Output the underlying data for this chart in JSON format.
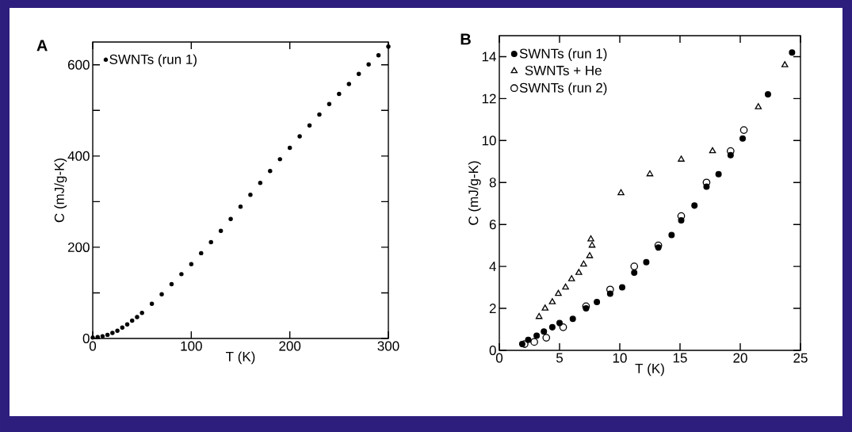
{
  "chart_data": [
    {
      "type": "scatter",
      "title": "A",
      "xlabel": "T (K)",
      "ylabel": "C (mJ/g-K)",
      "xlim": [
        0,
        300
      ],
      "ylim": [
        0,
        650
      ],
      "xticks": [
        0,
        100,
        200,
        300
      ],
      "yticks": [
        0,
        {
          "value": 100,
          "label": null
        },
        200,
        {
          "value": 300,
          "label": null
        },
        400,
        {
          "value": 500,
          "label": null
        },
        600
      ],
      "legend": "top left",
      "series": [
        {
          "name": "SWNTs (run 1)",
          "color": "#000000",
          "marker": "circle",
          "x": [
            0,
            5,
            10,
            15,
            20,
            25,
            30,
            35,
            40,
            45,
            50,
            60,
            70,
            80,
            90,
            100,
            110,
            120,
            130,
            140,
            150,
            160,
            170,
            180,
            190,
            200,
            210,
            220,
            230,
            240,
            250,
            260,
            270,
            280,
            290,
            300
          ],
          "values": [
            2,
            3,
            5,
            8,
            12,
            17,
            24,
            31,
            39,
            47,
            56,
            76,
            97,
            119,
            141,
            163,
            187,
            211,
            236,
            262,
            289,
            315,
            341,
            367,
            393,
            418,
            443,
            467,
            491,
            514,
            536,
            558,
            580,
            601,
            621,
            640
          ]
        }
      ]
    },
    {
      "type": "scatter",
      "title": "B",
      "xlabel": "T (K)",
      "ylabel": "C (mJ/g-K)",
      "xlim": [
        0,
        25
      ],
      "ylim": [
        0,
        15
      ],
      "xticks": [
        0,
        5,
        10,
        15,
        20,
        25
      ],
      "yticks": [
        0,
        2,
        4,
        6,
        8,
        10,
        12,
        14
      ],
      "legend": "top left",
      "series": [
        {
          "name": "SWNTs (run 1)",
          "color": "#000000",
          "marker": "circle",
          "x": [
            1.9,
            2.4,
            3.1,
            3.7,
            4.4,
            5.0,
            6.1,
            7.2,
            8.1,
            9.2,
            10.2,
            11.2,
            12.2,
            13.2,
            14.3,
            15.1,
            16.2,
            17.2,
            18.2,
            19.2,
            20.2,
            22.3,
            24.3
          ],
          "values": [
            0.3,
            0.5,
            0.7,
            0.9,
            1.1,
            1.3,
            1.5,
            2.0,
            2.3,
            2.7,
            3.0,
            3.7,
            4.2,
            4.9,
            5.5,
            6.2,
            6.9,
            7.8,
            8.4,
            9.3,
            10.1,
            12.2,
            14.2
          ]
        },
        {
          "name": "SWNTs + He",
          "color": "#ffffff",
          "marker": "triangle",
          "x": [
            3.3,
            3.8,
            4.4,
            4.9,
            5.5,
            6.0,
            6.6,
            7.0,
            7.5,
            7.7,
            7.6,
            10.1,
            12.5,
            15.1,
            17.7,
            21.5,
            23.7
          ],
          "values": [
            1.6,
            2.0,
            2.3,
            2.7,
            3.0,
            3.4,
            3.7,
            4.1,
            4.5,
            5.0,
            5.3,
            7.5,
            8.4,
            9.1,
            9.5,
            11.6,
            13.6
          ]
        },
        {
          "name": "SWNTs (run 2)",
          "color": "#ffffff",
          "marker": "circle",
          "x": [
            2.1,
            2.9,
            3.9,
            5.3,
            7.2,
            9.2,
            11.2,
            13.2,
            15.1,
            17.2,
            19.2,
            20.3
          ],
          "values": [
            0.3,
            0.4,
            0.6,
            1.1,
            2.1,
            2.9,
            4.0,
            5.0,
            6.4,
            8.0,
            9.5,
            10.5
          ]
        }
      ]
    }
  ]
}
